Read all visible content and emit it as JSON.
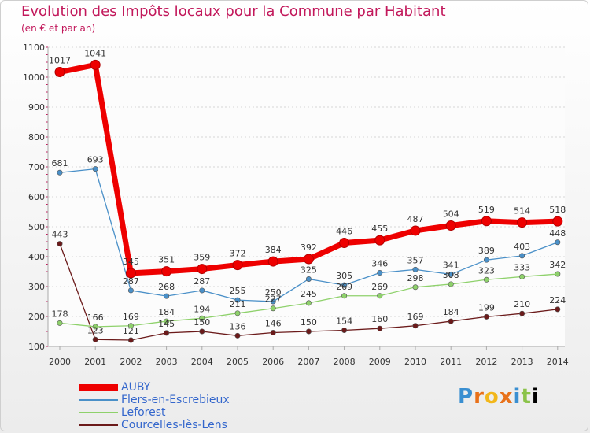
{
  "chart_data": {
    "type": "line",
    "title": "Evolution des Impôts locaux pour la Commune par Habitant",
    "subtitle": "(en € et par an)",
    "xlabel": "",
    "ylabel": "",
    "ylim": [
      100,
      1100
    ],
    "yticks": [
      100,
      200,
      300,
      400,
      500,
      600,
      700,
      800,
      900,
      1000,
      1100
    ],
    "categories": [
      "2000",
      "2001",
      "2002",
      "2003",
      "2004",
      "2005",
      "2006",
      "2007",
      "2008",
      "2009",
      "2010",
      "2011",
      "2012",
      "2013",
      "2014"
    ],
    "series": [
      {
        "name": "AUBY",
        "color": "#ee0000",
        "values": [
          1017,
          1041,
          345,
          351,
          359,
          372,
          384,
          392,
          446,
          455,
          487,
          504,
          519,
          514,
          518
        ]
      },
      {
        "name": "Flers-en-Escrebieux",
        "color": "#4a90c8",
        "values": [
          681,
          693,
          287,
          268,
          287,
          255,
          250,
          325,
          305,
          346,
          357,
          341,
          389,
          403,
          448
        ]
      },
      {
        "name": "Leforest",
        "color": "#8ed16b",
        "values": [
          178,
          166,
          169,
          184,
          194,
          211,
          227,
          245,
          269,
          269,
          298,
          308,
          323,
          333,
          342
        ]
      },
      {
        "name": "Courcelles-lès-Lens",
        "color": "#6b1a1a",
        "values": [
          443,
          123,
          121,
          145,
          150,
          136,
          146,
          150,
          154,
          160,
          169,
          184,
          199,
          210,
          224
        ]
      }
    ]
  },
  "logo": {
    "letters": [
      "P",
      "r",
      "o",
      "x",
      "i",
      "t",
      "i"
    ]
  }
}
